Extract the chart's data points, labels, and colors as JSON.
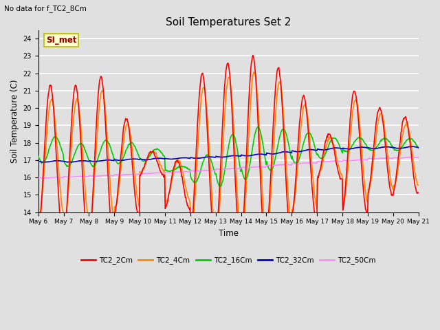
{
  "title": "Soil Temperatures Set 2",
  "subtitle": "No data for f_TC2_8Cm",
  "xlabel": "Time",
  "ylabel": "Soil Temperature (C)",
  "ylim": [
    14.0,
    24.5
  ],
  "yticks": [
    14.0,
    15.0,
    16.0,
    17.0,
    18.0,
    19.0,
    20.0,
    21.0,
    22.0,
    23.0,
    24.0
  ],
  "bg_color": "#e0e0e0",
  "grid_color": "#ffffff",
  "legend_label": "SI_met",
  "legend_bg": "#ffffcc",
  "legend_border": "#bbbb00",
  "series_colors": {
    "TC2_2Cm": "#ff0000",
    "TC2_4Cm": "#ff8800",
    "TC2_16Cm": "#00cc00",
    "TC2_32Cm": "#0000cc",
    "TC2_50Cm": "#ff88ff"
  },
  "x_tick_labels": [
    "May 6",
    "May 7",
    "May 8",
    "May 9",
    "May 10",
    "May 11",
    "May 12",
    "May 13",
    "May 14",
    "May 15",
    "May 16",
    "May 17",
    "May 18",
    "May 19",
    "May 20",
    "May 21"
  ],
  "n_days": 15,
  "figwidth": 6.4,
  "figheight": 4.8,
  "dpi": 100
}
